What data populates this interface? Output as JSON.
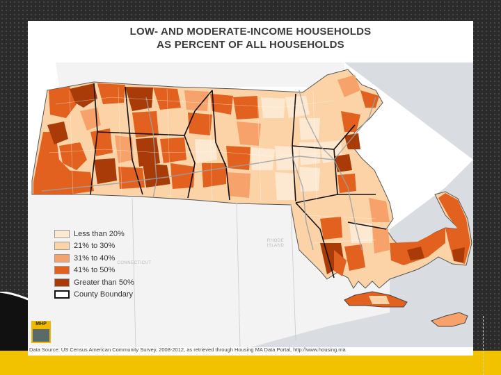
{
  "map": {
    "title_line1": "LOW- AND MODERATE-INCOME HOUSEHOLDS",
    "title_line2": "AS PERCENT OF ALL HOUSEHOLDS",
    "legend": [
      {
        "label": "Less than 20%",
        "color": "#fde9d1"
      },
      {
        "label": "21% to 30%",
        "color": "#fcd3a6"
      },
      {
        "label": "31% to 40%",
        "color": "#f6a26a"
      },
      {
        "label": "41% to 50%",
        "color": "#e2611f"
      },
      {
        "label": "Greater than 50%",
        "color": "#a83b08"
      },
      {
        "label": "County Boundary",
        "color": "#ffffff"
      }
    ],
    "place_labels": {
      "rhode_island": "RHODE\nISLAND",
      "connecticut": "CONNECTICUT"
    },
    "logo_text": "MHP",
    "source": "Data Source: US Census American Community Survey, 2008-2012, as retrieved through Housing MA Data Portal, http://www.housing.ma"
  },
  "colors": {
    "background": "#2b2b2b",
    "accent": "#f2c200",
    "water": "#d9dce0",
    "land_outside": "#f3f3f3"
  }
}
